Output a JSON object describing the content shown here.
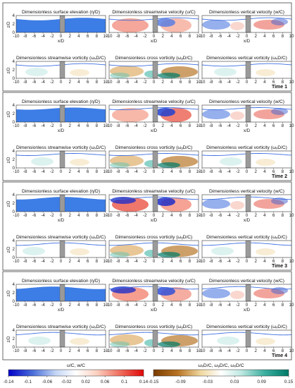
{
  "figure": {
    "times": [
      "Time 1",
      "Time 2",
      "Time 3",
      "Time 4"
    ],
    "panel_titles": [
      "Dimensionless surface elevation (η/D)",
      "Dimensionless streamwise velocity (u/C)",
      "Dimensionless vertical velocity (w/C)",
      "Dimensionless streamwise vorticity (ωₓD/C)",
      "Dimensionless cross vorticity (ωᵧD/C)",
      "Dimensionless vertical vorticity (ωₓD/C)"
    ],
    "ylabel": "z/D",
    "xlabel": "x/D",
    "xticks": [
      "-10",
      "-8",
      "-6",
      "-4",
      "-2",
      "0",
      "2",
      "4",
      "6",
      "8",
      "10"
    ],
    "yticks": [
      "0",
      "2",
      "4"
    ]
  },
  "chart_data": {
    "type": "heatmap",
    "x_range": [
      -10,
      10
    ],
    "y_range": [
      0,
      4
    ],
    "colorbars": [
      {
        "label": "u/C, w/C",
        "ticks": [
          "-0.14",
          "-0.1",
          "-0.06",
          "-0.02",
          "0.02",
          "0.06",
          "0.1",
          "0.14"
        ],
        "range": [
          -0.14,
          0.14
        ],
        "colors": [
          "#0000c8",
          "#6a8de6",
          "#d8e6fb",
          "#ffffff",
          "#fbd6c8",
          "#f08070",
          "#e01010"
        ]
      },
      {
        "label": "ωₓD/C, ωᵧD/C, ωₓD/C",
        "ticks": [
          "-0.15",
          "-0.09",
          "-0.03",
          "0.03",
          "0.09",
          "0.15"
        ],
        "range": [
          -0.15,
          0.15
        ],
        "colors": [
          "#7a3c00",
          "#c88a30",
          "#f2dca0",
          "#ffffff",
          "#b8e6e0",
          "#40b4a4",
          "#00806e"
        ]
      }
    ]
  }
}
